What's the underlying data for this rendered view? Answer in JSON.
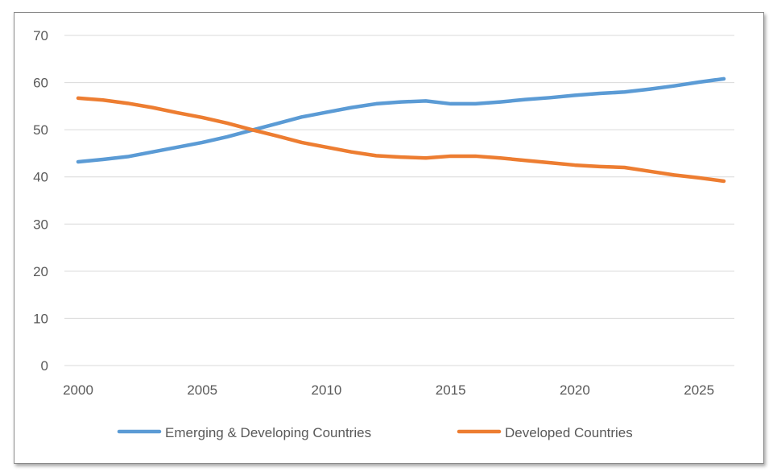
{
  "chart_data": {
    "type": "line",
    "title": "",
    "xlabel": "",
    "ylabel": "",
    "xlim": [
      2000,
      2026
    ],
    "ylim": [
      0,
      70
    ],
    "yticks": [
      0,
      10,
      20,
      30,
      40,
      50,
      60,
      70
    ],
    "xticks": [
      2000,
      2005,
      2010,
      2015,
      2020,
      2025
    ],
    "grid": "horizontal",
    "legend": "bottom",
    "x": [
      2000,
      2001,
      2002,
      2003,
      2004,
      2005,
      2006,
      2007,
      2008,
      2009,
      2010,
      2011,
      2012,
      2013,
      2014,
      2015,
      2016,
      2017,
      2018,
      2019,
      2020,
      2021,
      2022,
      2023,
      2024,
      2025,
      2026
    ],
    "series": [
      {
        "name": "Emerging & Developing Countries",
        "color": "#5b9bd5",
        "values": [
          43.2,
          43.7,
          44.3,
          45.3,
          46.3,
          47.3,
          48.5,
          49.9,
          51.3,
          52.7,
          53.7,
          54.7,
          55.5,
          55.9,
          56.1,
          55.5,
          55.5,
          55.9,
          56.4,
          56.8,
          57.3,
          57.7,
          58.0,
          58.6,
          59.3,
          60.1,
          60.8
        ]
      },
      {
        "name": "Developed Countries",
        "color": "#ed7d31",
        "values": [
          56.7,
          56.3,
          55.6,
          54.7,
          53.6,
          52.6,
          51.4,
          50.0,
          48.7,
          47.3,
          46.3,
          45.3,
          44.5,
          44.2,
          44.0,
          44.4,
          44.4,
          44.0,
          43.5,
          43.0,
          42.5,
          42.2,
          42.0,
          41.2,
          40.4,
          39.8,
          39.1
        ]
      }
    ]
  }
}
